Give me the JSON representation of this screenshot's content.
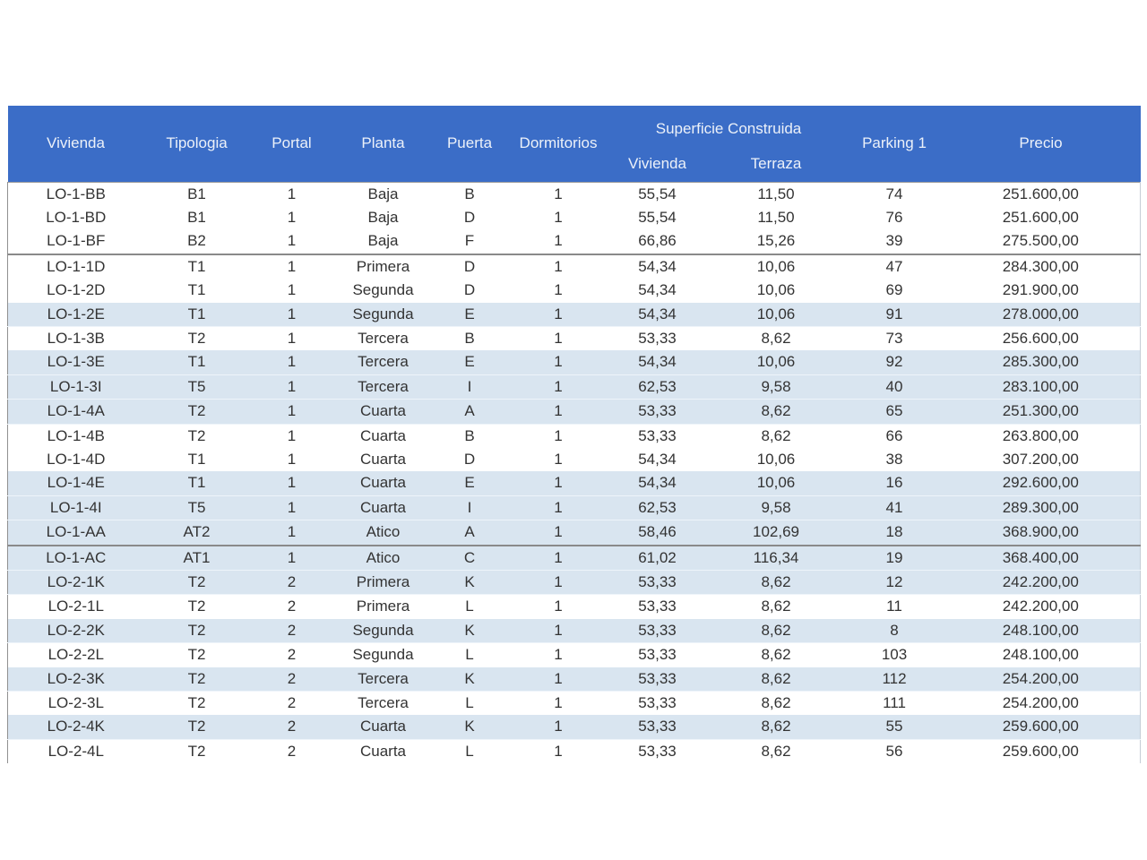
{
  "colors": {
    "header_bg": "#3B6DC7",
    "header_text": "#ECF1F9",
    "stripe_bg": "#D9E5F0",
    "body_text": "#333333"
  },
  "table": {
    "group_header": "Superficie Construida",
    "columns": [
      {
        "key": "vivienda",
        "label": "Vivienda"
      },
      {
        "key": "tipologia",
        "label": "Tipologia"
      },
      {
        "key": "portal",
        "label": "Portal"
      },
      {
        "key": "planta",
        "label": "Planta"
      },
      {
        "key": "puerta",
        "label": "Puerta"
      },
      {
        "key": "dormitorios",
        "label": "Dormitorios"
      },
      {
        "key": "sup-vivienda",
        "label": "Vivienda"
      },
      {
        "key": "sup-terraza",
        "label": "Terraza"
      },
      {
        "key": "parking",
        "label": "Parking 1"
      },
      {
        "key": "precio",
        "label": "Precio"
      }
    ],
    "rows": [
      {
        "cells": [
          "LO-1-BB",
          "B1",
          "1",
          "Baja",
          "B",
          "1",
          "55,54",
          "11,50",
          "74",
          "251.600,00"
        ],
        "shaded": false,
        "divider_below": false
      },
      {
        "cells": [
          "LO-1-BD",
          "B1",
          "1",
          "Baja",
          "D",
          "1",
          "55,54",
          "11,50",
          "76",
          "251.600,00"
        ],
        "shaded": false,
        "divider_below": false
      },
      {
        "cells": [
          "LO-1-BF",
          "B2",
          "1",
          "Baja",
          "F",
          "1",
          "66,86",
          "15,26",
          "39",
          "275.500,00"
        ],
        "shaded": false,
        "divider_below": true
      },
      {
        "cells": [
          "LO-1-1D",
          "T1",
          "1",
          "Primera",
          "D",
          "1",
          "54,34",
          "10,06",
          "47",
          "284.300,00"
        ],
        "shaded": false,
        "divider_below": false
      },
      {
        "cells": [
          "LO-1-2D",
          "T1",
          "1",
          "Segunda",
          "D",
          "1",
          "54,34",
          "10,06",
          "69",
          "291.900,00"
        ],
        "shaded": false,
        "divider_below": false
      },
      {
        "cells": [
          "LO-1-2E",
          "T1",
          "1",
          "Segunda",
          "E",
          "1",
          "54,34",
          "10,06",
          "91",
          "278.000,00"
        ],
        "shaded": true,
        "divider_below": false
      },
      {
        "cells": [
          "LO-1-3B",
          "T2",
          "1",
          "Tercera",
          "B",
          "1",
          "53,33",
          "8,62",
          "73",
          "256.600,00"
        ],
        "shaded": false,
        "divider_below": false
      },
      {
        "cells": [
          "LO-1-3E",
          "T1",
          "1",
          "Tercera",
          "E",
          "1",
          "54,34",
          "10,06",
          "92",
          "285.300,00"
        ],
        "shaded": true,
        "divider_below": false
      },
      {
        "cells": [
          "LO-1-3I",
          "T5",
          "1",
          "Tercera",
          "I",
          "1",
          "62,53",
          "9,58",
          "40",
          "283.100,00"
        ],
        "shaded": true,
        "divider_below": false
      },
      {
        "cells": [
          "LO-1-4A",
          "T2",
          "1",
          "Cuarta",
          "A",
          "1",
          "53,33",
          "8,62",
          "65",
          "251.300,00"
        ],
        "shaded": true,
        "divider_below": false
      },
      {
        "cells": [
          "LO-1-4B",
          "T2",
          "1",
          "Cuarta",
          "B",
          "1",
          "53,33",
          "8,62",
          "66",
          "263.800,00"
        ],
        "shaded": false,
        "divider_below": false
      },
      {
        "cells": [
          "LO-1-4D",
          "T1",
          "1",
          "Cuarta",
          "D",
          "1",
          "54,34",
          "10,06",
          "38",
          "307.200,00"
        ],
        "shaded": false,
        "divider_below": false
      },
      {
        "cells": [
          "LO-1-4E",
          "T1",
          "1",
          "Cuarta",
          "E",
          "1",
          "54,34",
          "10,06",
          "16",
          "292.600,00"
        ],
        "shaded": true,
        "divider_below": false
      },
      {
        "cells": [
          "LO-1-4I",
          "T5",
          "1",
          "Cuarta",
          "I",
          "1",
          "62,53",
          "9,58",
          "41",
          "289.300,00"
        ],
        "shaded": true,
        "divider_below": false
      },
      {
        "cells": [
          "LO-1-AA",
          "AT2",
          "1",
          "Atico",
          "A",
          "1",
          "58,46",
          "102,69",
          "18",
          "368.900,00"
        ],
        "shaded": true,
        "divider_below": true
      },
      {
        "cells": [
          "LO-1-AC",
          "AT1",
          "1",
          "Atico",
          "C",
          "1",
          "61,02",
          "116,34",
          "19",
          "368.400,00"
        ],
        "shaded": true,
        "divider_below": false
      },
      {
        "cells": [
          "LO-2-1K",
          "T2",
          "2",
          "Primera",
          "K",
          "1",
          "53,33",
          "8,62",
          "12",
          "242.200,00"
        ],
        "shaded": true,
        "divider_below": false
      },
      {
        "cells": [
          "LO-2-1L",
          "T2",
          "2",
          "Primera",
          "L",
          "1",
          "53,33",
          "8,62",
          "11",
          "242.200,00"
        ],
        "shaded": false,
        "divider_below": false
      },
      {
        "cells": [
          "LO-2-2K",
          "T2",
          "2",
          "Segunda",
          "K",
          "1",
          "53,33",
          "8,62",
          "8",
          "248.100,00"
        ],
        "shaded": true,
        "divider_below": false
      },
      {
        "cells": [
          "LO-2-2L",
          "T2",
          "2",
          "Segunda",
          "L",
          "1",
          "53,33",
          "8,62",
          "103",
          "248.100,00"
        ],
        "shaded": false,
        "divider_below": false
      },
      {
        "cells": [
          "LO-2-3K",
          "T2",
          "2",
          "Tercera",
          "K",
          "1",
          "53,33",
          "8,62",
          "112",
          "254.200,00"
        ],
        "shaded": true,
        "divider_below": false
      },
      {
        "cells": [
          "LO-2-3L",
          "T2",
          "2",
          "Tercera",
          "L",
          "1",
          "53,33",
          "8,62",
          "111",
          "254.200,00"
        ],
        "shaded": false,
        "divider_below": false
      },
      {
        "cells": [
          "LO-2-4K",
          "T2",
          "2",
          "Cuarta",
          "K",
          "1",
          "53,33",
          "8,62",
          "55",
          "259.600,00"
        ],
        "shaded": true,
        "divider_below": false
      },
      {
        "cells": [
          "LO-2-4L",
          "T2",
          "2",
          "Cuarta",
          "L",
          "1",
          "53,33",
          "8,62",
          "56",
          "259.600,00"
        ],
        "shaded": false,
        "divider_below": false
      }
    ]
  }
}
